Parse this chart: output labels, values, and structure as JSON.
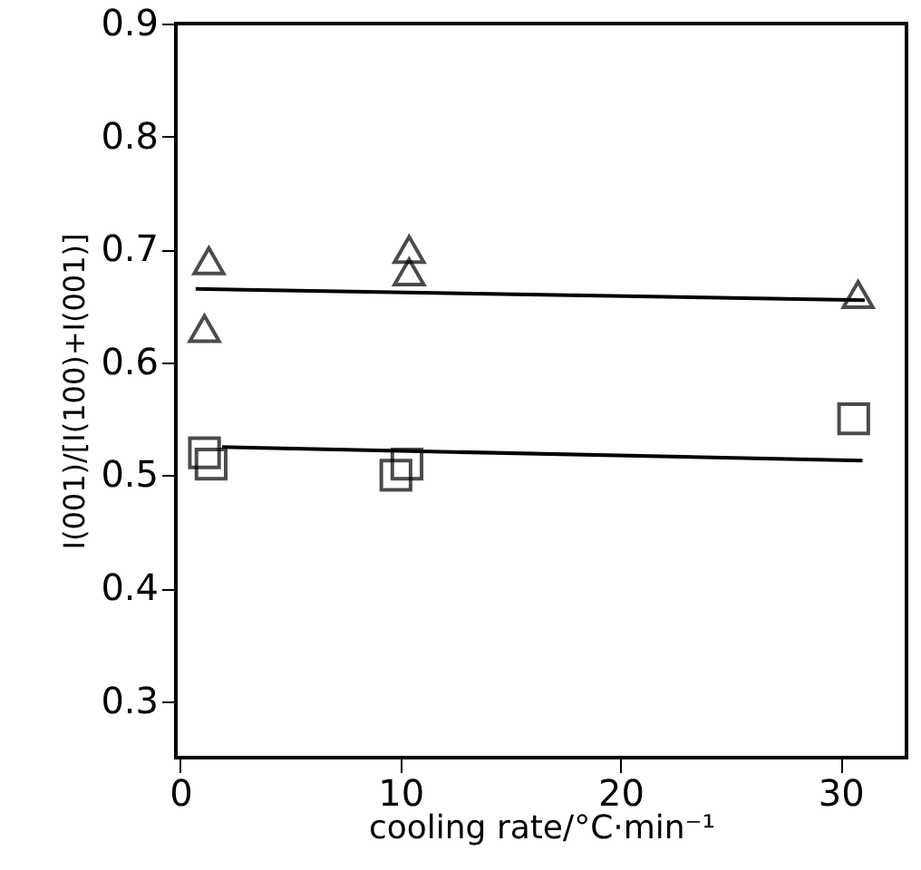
{
  "chart_data": {
    "type": "scatter",
    "xlabel": "cooling rate/°C·min⁻¹",
    "ylabel": "I(001)/[I(100)+I(001)]",
    "xlim": [
      -0.2,
      33
    ],
    "xticks": [
      0,
      10,
      20,
      30
    ],
    "ylim": [
      0.25,
      0.9
    ],
    "yticks": [
      0.3,
      0.4,
      0.5,
      0.6,
      0.7,
      0.8,
      0.9
    ],
    "grid": false,
    "series": [
      {
        "marker": "triangle",
        "color": "#000000",
        "x": [
          1.3,
          1.1,
          10.4,
          10.4,
          30.8
        ],
        "values": [
          0.69,
          0.63,
          0.7,
          0.68,
          0.66
        ]
      },
      {
        "marker": "square",
        "color": "#000000",
        "x": [
          1.1,
          1.4,
          9.8,
          10.3,
          30.6
        ],
        "values": [
          0.52,
          0.51,
          0.5,
          0.51,
          0.55
        ]
      },
      {
        "type": "line",
        "color": "#000000",
        "x": [
          0.7,
          31.1
        ],
        "values": [
          0.665,
          0.655
        ]
      },
      {
        "type": "line",
        "color": "#000000",
        "x": [
          1.9,
          31.0
        ],
        "values": [
          0.525,
          0.513
        ]
      }
    ]
  }
}
